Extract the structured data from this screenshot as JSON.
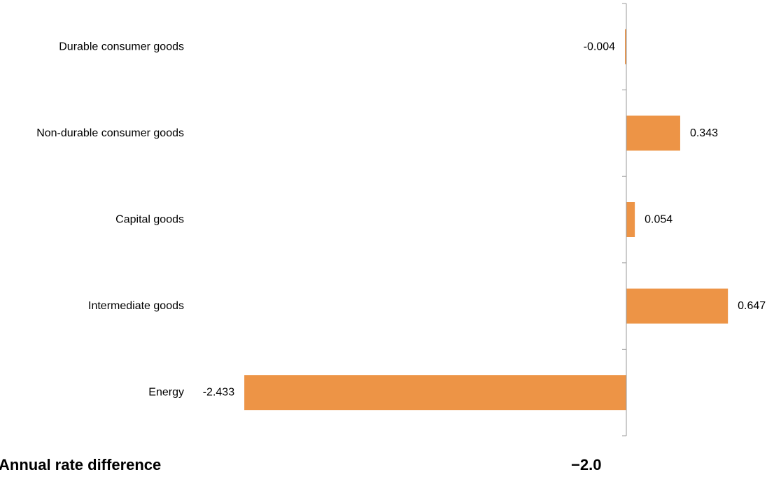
{
  "chart_data": {
    "type": "bar",
    "orientation": "horizontal",
    "categories": [
      "Durable consumer goods",
      "Non-durable consumer goods",
      "Capital goods",
      "Intermediate goods",
      "Energy"
    ],
    "values": [
      -0.004,
      0.343,
      0.054,
      0.647,
      -2.433
    ],
    "value_labels": [
      "-0.004",
      "0.343",
      "0.054",
      "0.647",
      "-2.433"
    ],
    "bar_color": "#ED9446",
    "axis_color": "#999999",
    "grid": false,
    "legend": "none",
    "xlim": [
      -2.433,
      0.647
    ]
  },
  "footer": {
    "left_text": "Annual rate difference",
    "right_text": "−2.0"
  }
}
